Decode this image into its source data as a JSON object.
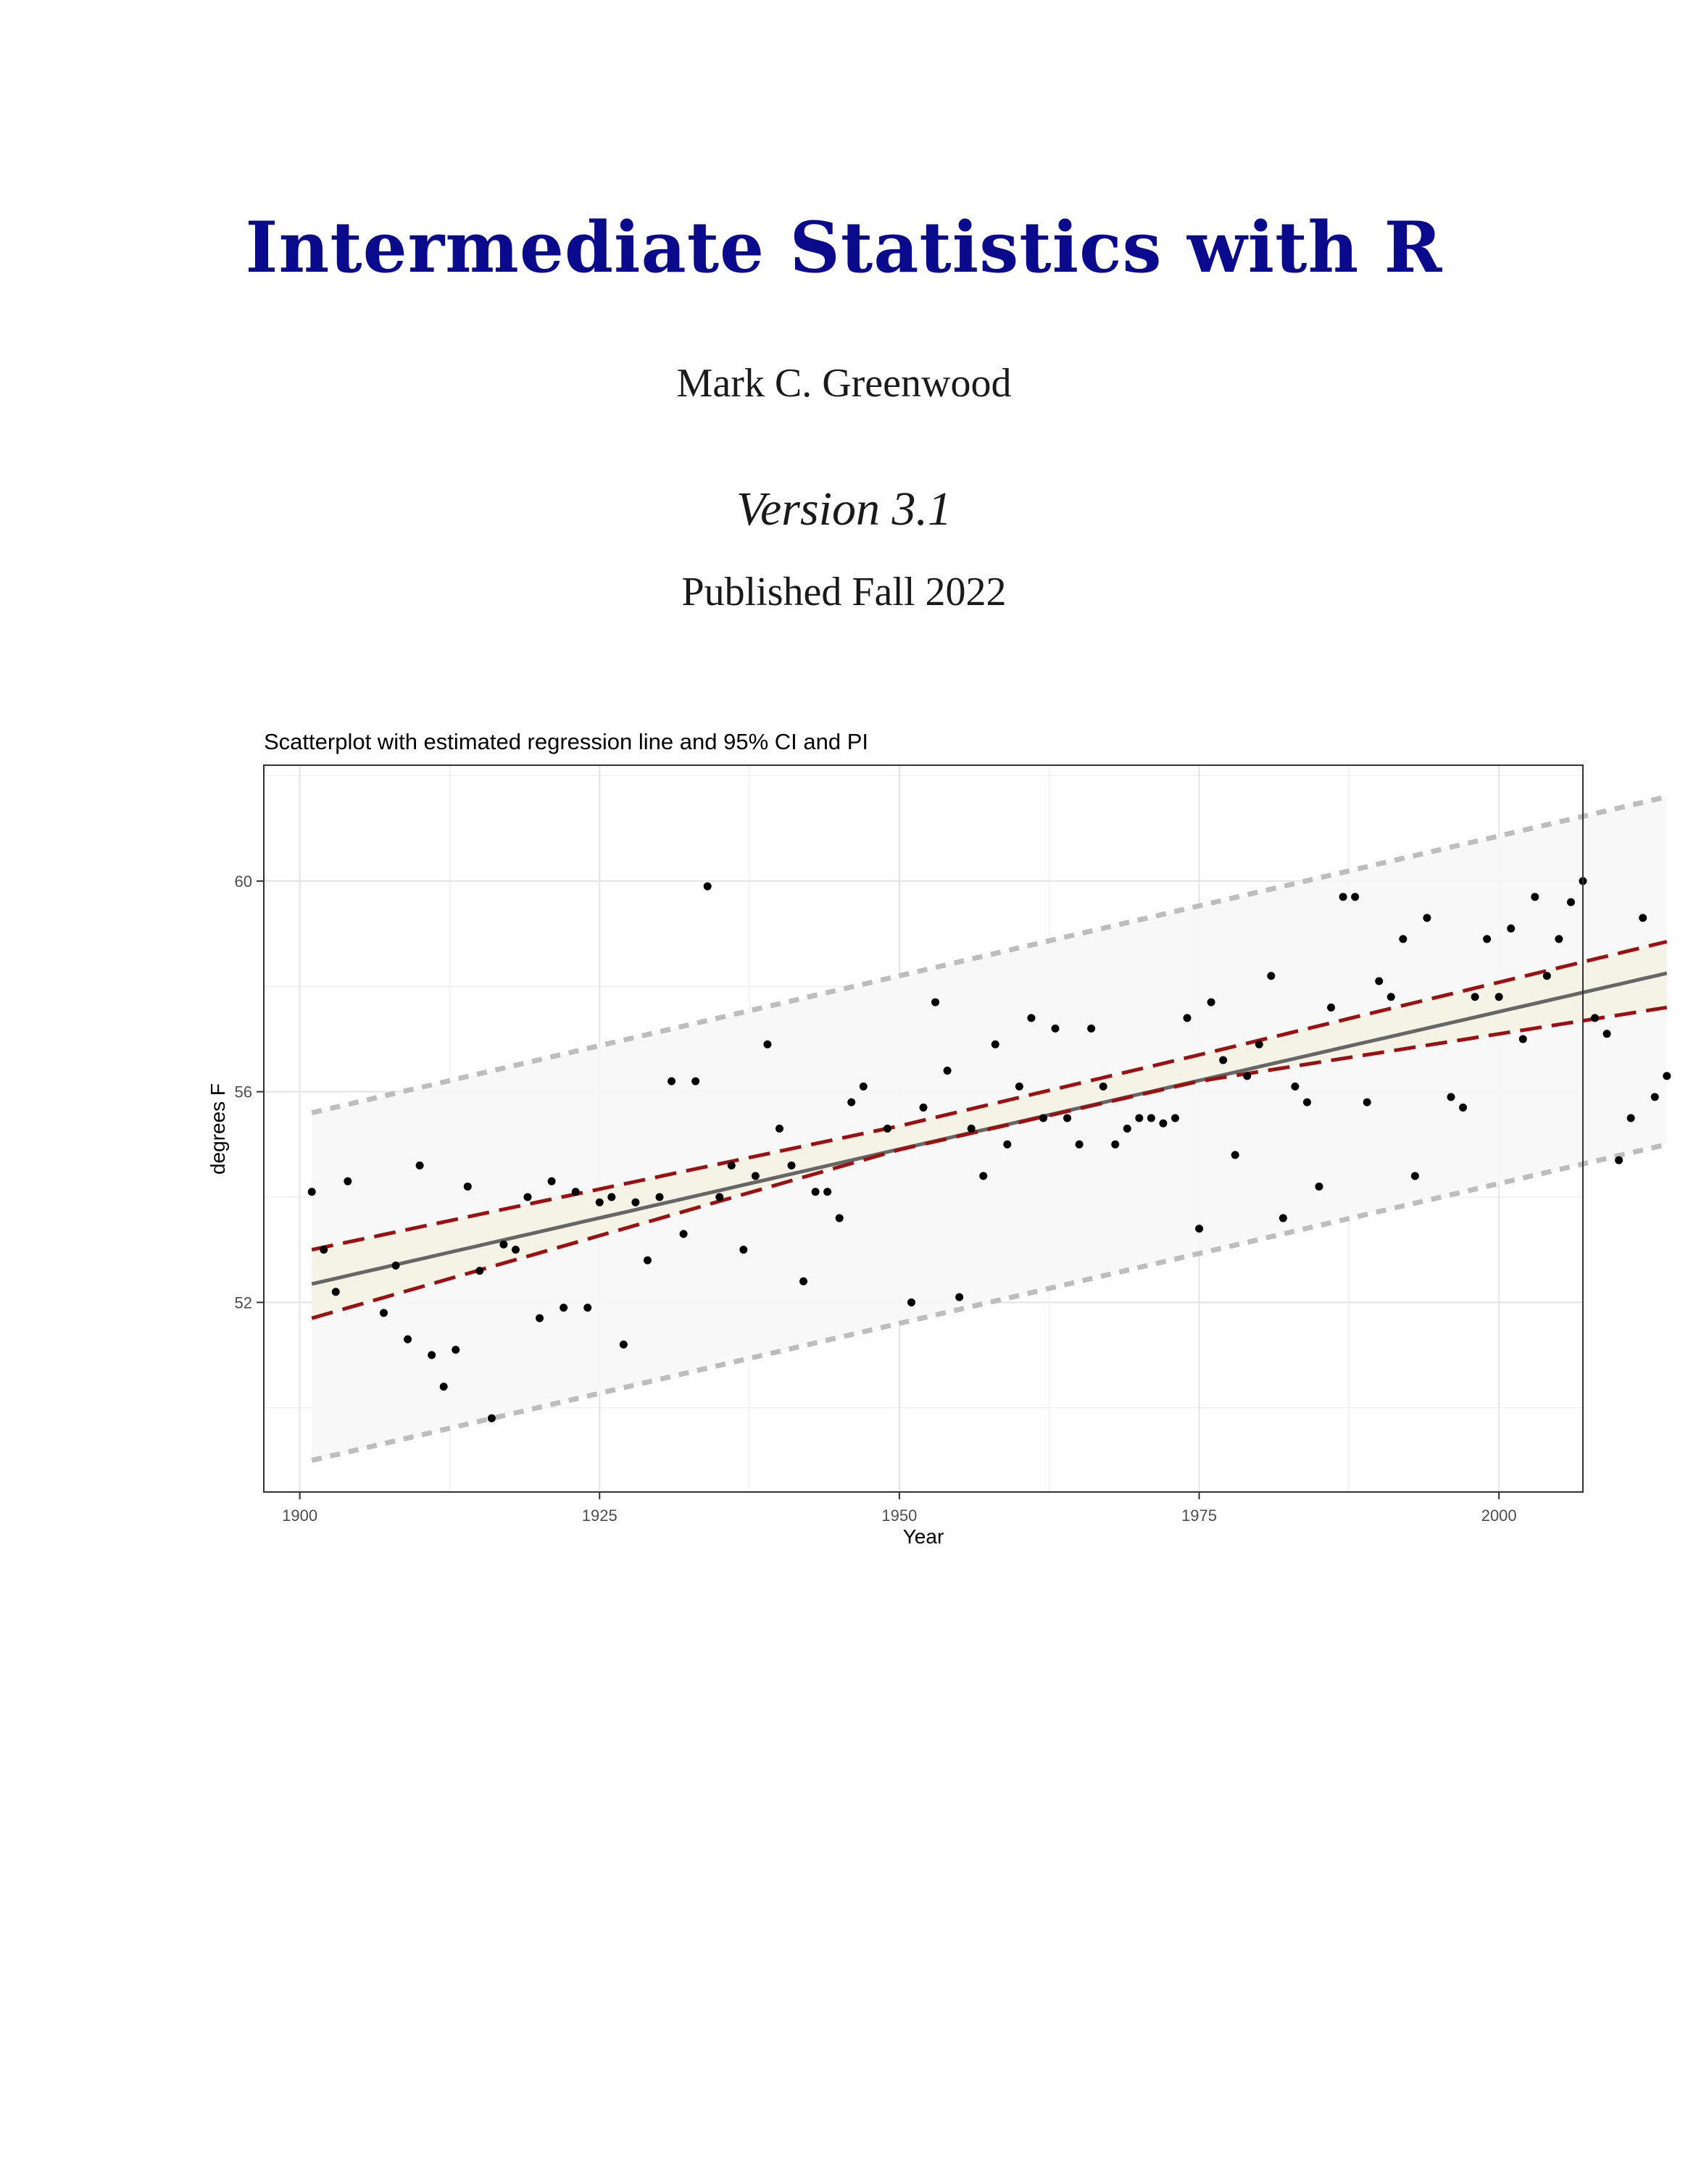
{
  "document": {
    "title": "Intermediate Statistics with R",
    "author": "Mark C. Greenwood",
    "version": "Version 3.1",
    "published": "Published Fall 2022"
  },
  "colors": {
    "title": "#0a0a8c",
    "fit_line": "#666666",
    "ci_line": "#9b1010",
    "pi_line": "#bdbdbd",
    "ci_band": "#f5f3e6",
    "pi_band": "#f7f7f7",
    "points": "#000000"
  },
  "chart_data": {
    "type": "scatter",
    "title": "Scatterplot with estimated regression line and 95% CI and PI",
    "xlabel": "Year",
    "ylabel": "degrees F",
    "xlim": [
      1897,
      2007
    ],
    "ylim": [
      48.4,
      62.2
    ],
    "x_ticks": [
      1900,
      1925,
      1950,
      1975,
      2000
    ],
    "x_tick_labels": [
      "1900",
      "1925",
      "1950",
      "1975",
      "2000"
    ],
    "y_ticks": [
      52,
      56,
      60
    ],
    "y_tick_labels": [
      "52",
      "56",
      "60"
    ],
    "grid": true,
    "legend": "none",
    "fit": {
      "x": [
        1901,
        2014
      ],
      "y": [
        52.35,
        58.25
      ]
    },
    "ci_lower": {
      "x": [
        1901,
        1950,
        1975,
        2014
      ],
      "y": [
        51.7,
        54.9,
        56.2,
        57.6
      ]
    },
    "ci_upper": {
      "x": [
        1901,
        1950,
        1975,
        2014
      ],
      "y": [
        53.0,
        55.35,
        56.7,
        58.85
      ]
    },
    "pi_lower": {
      "x": [
        1901,
        2014
      ],
      "y": [
        49.0,
        55.0
      ]
    },
    "pi_upper": {
      "x": [
        1901,
        2014
      ],
      "y": [
        55.6,
        61.6
      ]
    },
    "points": [
      [
        1901,
        54.1
      ],
      [
        1902,
        53.0
      ],
      [
        1903,
        52.2
      ],
      [
        1904,
        54.3
      ],
      [
        1907,
        51.8
      ],
      [
        1908,
        52.7
      ],
      [
        1909,
        51.3
      ],
      [
        1910,
        54.6
      ],
      [
        1911,
        51.0
      ],
      [
        1912,
        50.4
      ],
      [
        1913,
        51.1
      ],
      [
        1914,
        54.2
      ],
      [
        1915,
        52.6
      ],
      [
        1916,
        49.8
      ],
      [
        1917,
        53.1
      ],
      [
        1918,
        53.0
      ],
      [
        1919,
        54.0
      ],
      [
        1920,
        51.7
      ],
      [
        1921,
        54.3
      ],
      [
        1922,
        51.9
      ],
      [
        1923,
        54.1
      ],
      [
        1924,
        51.9
      ],
      [
        1925,
        53.9
      ],
      [
        1926,
        54.0
      ],
      [
        1927,
        51.2
      ],
      [
        1928,
        53.9
      ],
      [
        1929,
        52.8
      ],
      [
        1930,
        54.0
      ],
      [
        1931,
        56.2
      ],
      [
        1932,
        53.3
      ],
      [
        1933,
        56.2
      ],
      [
        1934,
        59.9
      ],
      [
        1935,
        54.0
      ],
      [
        1936,
        54.6
      ],
      [
        1937,
        53.0
      ],
      [
        1938,
        54.4
      ],
      [
        1939,
        56.9
      ],
      [
        1940,
        55.3
      ],
      [
        1941,
        54.6
      ],
      [
        1942,
        52.4
      ],
      [
        1943,
        54.1
      ],
      [
        1944,
        54.1
      ],
      [
        1945,
        53.6
      ],
      [
        1946,
        55.8
      ],
      [
        1947,
        56.1
      ],
      [
        1949,
        55.3
      ],
      [
        1951,
        52.0
      ],
      [
        1952,
        55.7
      ],
      [
        1953,
        57.7
      ],
      [
        1954,
        56.4
      ],
      [
        1955,
        52.1
      ],
      [
        1956,
        55.3
      ],
      [
        1957,
        54.4
      ],
      [
        1958,
        56.9
      ],
      [
        1959,
        55.0
      ],
      [
        1960,
        56.1
      ],
      [
        1961,
        57.4
      ],
      [
        1962,
        55.5
      ],
      [
        1963,
        57.2
      ],
      [
        1964,
        55.5
      ],
      [
        1965,
        55.0
      ],
      [
        1966,
        57.2
      ],
      [
        1967,
        56.1
      ],
      [
        1968,
        55.0
      ],
      [
        1969,
        55.3
      ],
      [
        1970,
        55.5
      ],
      [
        1971,
        55.5
      ],
      [
        1972,
        55.4
      ],
      [
        1973,
        55.5
      ],
      [
        1974,
        57.4
      ],
      [
        1975,
        53.4
      ],
      [
        1976,
        57.7
      ],
      [
        1977,
        56.6
      ],
      [
        1978,
        54.8
      ],
      [
        1979,
        56.3
      ],
      [
        1980,
        56.9
      ],
      [
        1981,
        58.2
      ],
      [
        1982,
        53.6
      ],
      [
        1983,
        56.1
      ],
      [
        1984,
        55.8
      ],
      [
        1985,
        54.2
      ],
      [
        1986,
        57.6
      ],
      [
        1987,
        59.7
      ],
      [
        1988,
        59.7
      ],
      [
        1989,
        55.8
      ],
      [
        1990,
        58.1
      ],
      [
        1991,
        57.8
      ],
      [
        1992,
        58.9
      ],
      [
        1993,
        54.4
      ],
      [
        1994,
        59.3
      ],
      [
        1996,
        55.9
      ],
      [
        1997,
        55.7
      ],
      [
        1998,
        57.8
      ],
      [
        1999,
        58.9
      ],
      [
        2000,
        57.8
      ],
      [
        2001,
        59.1
      ],
      [
        2002,
        57.0
      ],
      [
        2003,
        59.7
      ],
      [
        2004,
        58.2
      ],
      [
        2005,
        58.9
      ],
      [
        2006,
        59.6
      ],
      [
        2007,
        60.0
      ],
      [
        2008,
        57.4
      ],
      [
        2009,
        57.1
      ],
      [
        2010,
        54.7
      ],
      [
        2011,
        55.5
      ],
      [
        2012,
        59.3
      ],
      [
        2013,
        55.9
      ],
      [
        2014,
        56.3
      ]
    ]
  }
}
